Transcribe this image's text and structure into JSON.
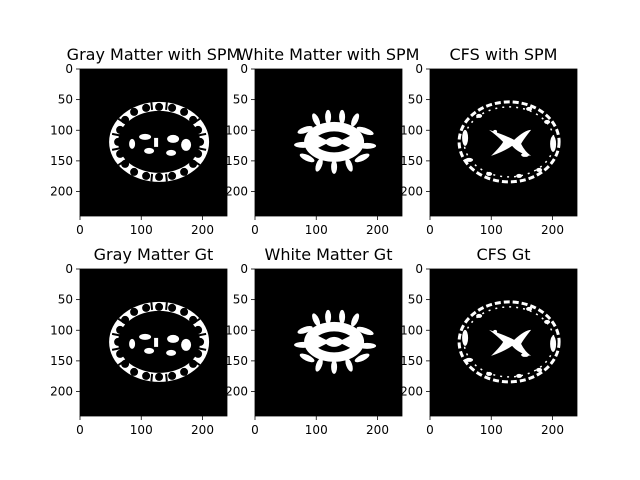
{
  "panels": [
    {
      "title": "Gray Matter with SPM",
      "tissue": "gray"
    },
    {
      "title": "White Matter with SPM",
      "tissue": "white"
    },
    {
      "title": "CFS with SPM",
      "tissue": "csf"
    },
    {
      "title": "Gray Matter Gt",
      "tissue": "gray"
    },
    {
      "title": "White Matter Gt",
      "tissue": "white"
    },
    {
      "title": "CFS Gt",
      "tissue": "csf"
    }
  ],
  "axes": {
    "x_ticks": [
      "0",
      "100",
      "200"
    ],
    "y_ticks": [
      "0",
      "50",
      "100",
      "150",
      "200"
    ]
  },
  "colors": {
    "background": "#000000",
    "foreground": "#ffffff",
    "frame": "#000000",
    "text": "#000000"
  }
}
